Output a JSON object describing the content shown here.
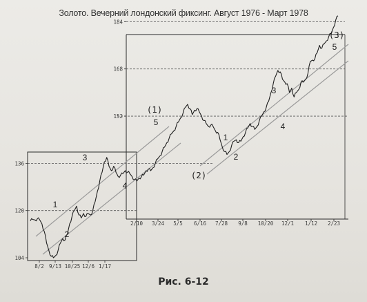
{
  "chart_data": {
    "type": "line",
    "title": "Золото. Вечерний лондонский фиксинг. Август 1976 - Март 1978",
    "caption": "Рис. 6-12",
    "panels": [
      {
        "name": "lower",
        "x_ticks": [
          "8/2",
          "9/13",
          "10/25",
          "12/6",
          "1/17"
        ],
        "y_ticks": [
          "104",
          "120",
          "136"
        ],
        "ylim": [
          104,
          136
        ]
      },
      {
        "name": "upper",
        "x_ticks": [
          "2/10",
          "3/24",
          "5/5",
          "6/16",
          "7/28",
          "9/8",
          "10/20",
          "12/1",
          "1/12",
          "2/23"
        ],
        "y_ticks": [
          "152",
          "168",
          "184"
        ],
        "ylim": [
          152,
          184
        ]
      }
    ],
    "series": [
      {
        "values": [
          116.5,
          117.0,
          116.8,
          117.2,
          116.9,
          115.5,
          113.0,
          109.0,
          106.5,
          104.5,
          104.0,
          104.8,
          106.5,
          109.0,
          110.5,
          110.0,
          112.0,
          115.5,
          118.0,
          120.0,
          121.5,
          118.5,
          117.5,
          119.0,
          118.0,
          119.0,
          118.5,
          120.0,
          123.0,
          126.5,
          130.0,
          133.0,
          136.5,
          138.0,
          135.0,
          133.5,
          135.0,
          133.0,
          131.5,
          132.0,
          132.5,
          133.5,
          133.0,
          132.5,
          131.5,
          130.5,
          130.0,
          131.0,
          131.5,
          132.0,
          133.5,
          134.0,
          133.5,
          134.5,
          136.0,
          137.5,
          138.5,
          140.0,
          141.5,
          143.0,
          144.5,
          146.0,
          147.0,
          148.5,
          150.0,
          151.5,
          153.0,
          155.0,
          156.0,
          154.5,
          152.5,
          154.0,
          154.5,
          153.5,
          152.0,
          150.5,
          149.5,
          148.5,
          149.0,
          148.5,
          147.0,
          146.5,
          144.0,
          141.5,
          140.0,
          139.0,
          140.0,
          142.0,
          143.5,
          144.0,
          143.0,
          143.5,
          145.0,
          146.5,
          148.0,
          149.5,
          148.5,
          147.5,
          148.5,
          150.5,
          152.0,
          153.5,
          155.0,
          157.0,
          160.0,
          163.0,
          165.5,
          167.5,
          167.0,
          164.5,
          163.5,
          163.0,
          160.0,
          161.5,
          158.5,
          160.0,
          161.0,
          163.5,
          163.5,
          164.5,
          166.5,
          170.5,
          171.0,
          171.5,
          173.5,
          176.0,
          175.0,
          176.5,
          177.5,
          179.0,
          180.0,
          182.0,
          184.5,
          186.0
        ]
      }
    ],
    "annotations": {
      "wave_labels": [
        "1",
        "2",
        "3",
        "4",
        "5",
        "(1)",
        "(2)",
        "1",
        "2",
        "3",
        "4",
        "5",
        "(3)"
      ]
    },
    "grid": "dashed reference lines at labeled price levels",
    "legend": "none"
  }
}
